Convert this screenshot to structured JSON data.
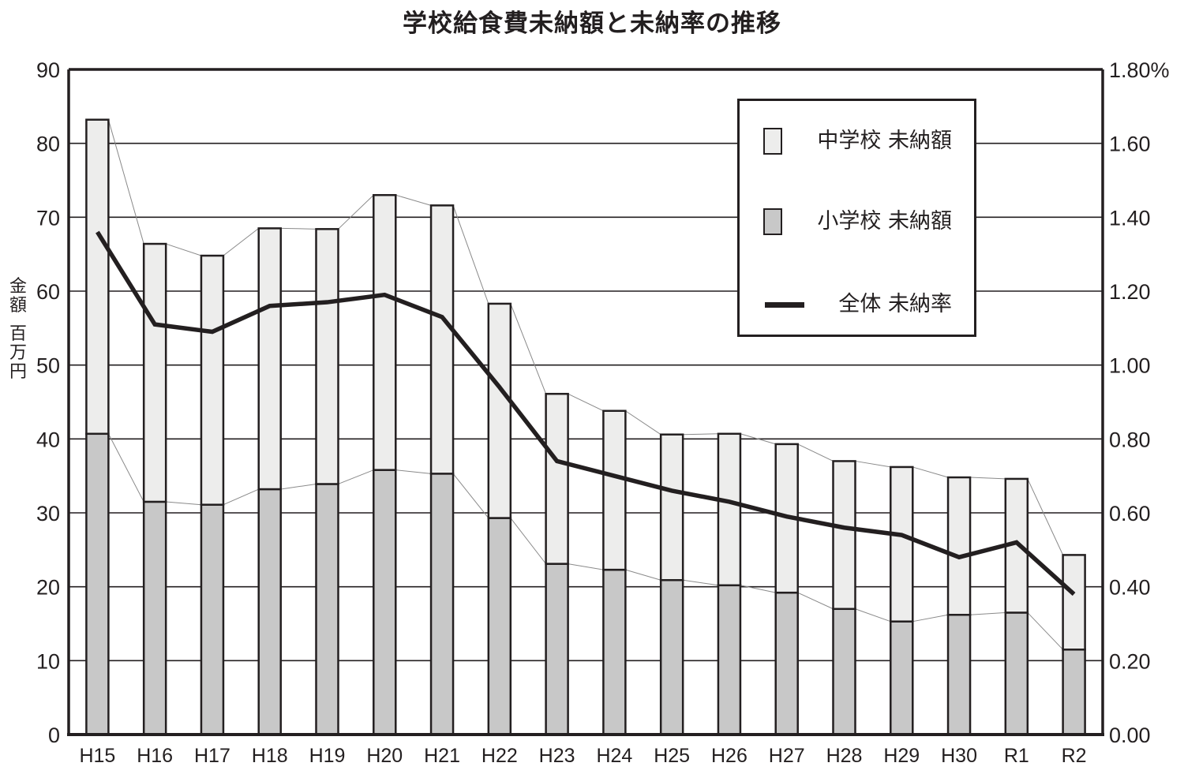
{
  "title": "学校給食費未納額と未納率の推移",
  "y_left_label_chars": [
    "金",
    "額",
    "",
    "百",
    "万",
    "円"
  ],
  "legend": {
    "items": [
      {
        "label": "中学校 未納額",
        "type": "bar",
        "color": "#ededec"
      },
      {
        "label": "小学校 未納額",
        "type": "bar",
        "color": "#c8c8c8"
      },
      {
        "label": "全体 未納率",
        "type": "line",
        "color": "#231f20"
      }
    ]
  },
  "colors": {
    "junior_high": "#ededec",
    "elementary": "#c8c8c8",
    "rate_line": "#231f20",
    "grid": "#231f20",
    "connector": "#8a8a8a"
  },
  "chart_data": {
    "type": "bar",
    "stacked": true,
    "title": "学校給食費未納額と未納率の推移",
    "xlabel": "",
    "ylabel": "金額 百万円",
    "y2label": "%",
    "ylim": [
      0,
      90
    ],
    "y2lim": [
      0.0,
      1.8
    ],
    "yticks": [
      "0",
      "10",
      "20",
      "30",
      "40",
      "50",
      "60",
      "70",
      "80",
      "90"
    ],
    "y2ticks": [
      "0.00",
      "0.20",
      "0.40",
      "0.60",
      "0.80",
      "1.00",
      "1.20",
      "1.40",
      "1.60",
      "1.80%"
    ],
    "grid": true,
    "legend_position": "upper right (inside plot)",
    "categories": [
      "H15",
      "H16",
      "H17",
      "H18",
      "H19",
      "H20",
      "H21",
      "H22",
      "H23",
      "H24",
      "H25",
      "H26",
      "H27",
      "H28",
      "H29",
      "H30",
      "R1",
      "R2"
    ],
    "series": [
      {
        "name": "小学校 未納額",
        "type": "bar",
        "axis": "left",
        "values": [
          40.7,
          31.5,
          31.1,
          33.2,
          33.9,
          35.8,
          35.3,
          29.3,
          23.1,
          22.3,
          20.9,
          20.2,
          19.2,
          17.0,
          15.3,
          16.2,
          16.5,
          11.5
        ]
      },
      {
        "name": "中学校 未納額",
        "type": "bar",
        "axis": "left",
        "values": [
          42.5,
          34.9,
          33.7,
          35.3,
          34.5,
          37.2,
          36.3,
          29.0,
          23.0,
          21.5,
          19.7,
          20.5,
          20.1,
          20.0,
          20.9,
          18.6,
          18.1,
          12.8
        ]
      },
      {
        "name": "全体 未納率",
        "type": "line",
        "axis": "right",
        "values": [
          1.36,
          1.11,
          1.09,
          1.16,
          1.17,
          1.19,
          1.13,
          0.94,
          0.74,
          0.7,
          0.66,
          0.63,
          0.59,
          0.56,
          0.54,
          0.48,
          0.52,
          0.38
        ]
      }
    ],
    "totals": [
      83.2,
      66.4,
      64.8,
      68.5,
      68.4,
      73.0,
      71.6,
      58.3,
      46.1,
      43.8,
      40.6,
      40.7,
      39.3,
      37.0,
      36.2,
      34.8,
      34.6,
      24.3
    ]
  }
}
